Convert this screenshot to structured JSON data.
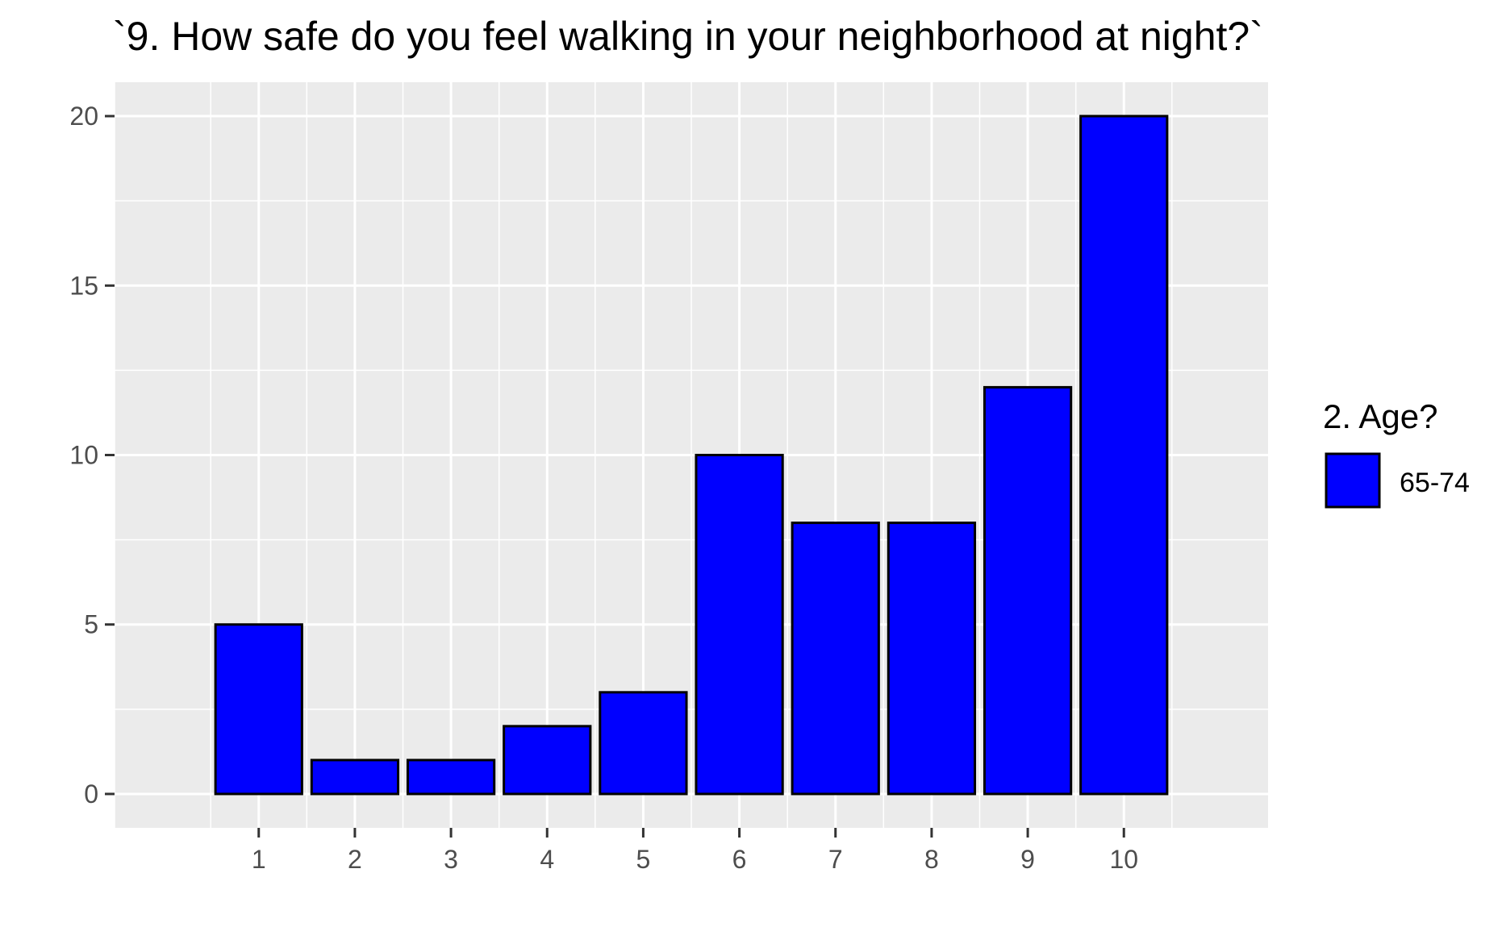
{
  "chart_data": {
    "type": "bar",
    "title": "`9. How safe do you feel walking in your neighborhood at night?`",
    "xlabel": "",
    "ylabel": "",
    "categories": [
      "1",
      "2",
      "3",
      "4",
      "5",
      "6",
      "7",
      "8",
      "9",
      "10"
    ],
    "series": [
      {
        "name": "65-74",
        "values": [
          5,
          1,
          1,
          2,
          3,
          10,
          8,
          8,
          12,
          20
        ]
      }
    ],
    "xlim": [
      -0.5,
      11.5
    ],
    "ylim": [
      -1,
      21
    ],
    "yticks": [
      0,
      5,
      10,
      15,
      20
    ],
    "grid": true,
    "legend": {
      "title": "2. Age?",
      "placement": "right"
    },
    "colors": {
      "bar_fill": "#0000ff",
      "bar_outline": "#000000",
      "panel_background": "#ebebeb",
      "grid": "#ffffff",
      "tick_text": "#4d4d4d"
    }
  }
}
